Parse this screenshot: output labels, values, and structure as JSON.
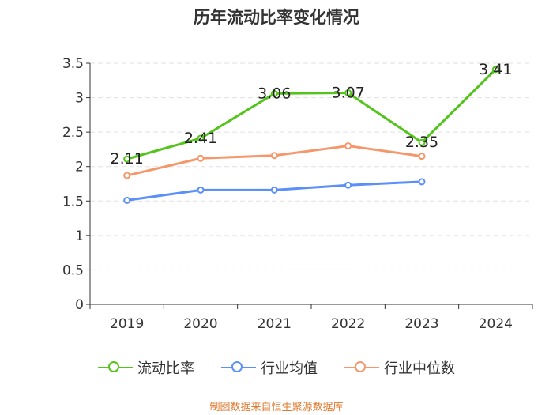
{
  "colors": {
    "current_ratio": "#52c41a",
    "industry_mean": "#5b8ff9",
    "industry_median": "#f6976b",
    "axis": "#333333",
    "grid": "#e0e0e0",
    "source": "#e07a30"
  },
  "chart_data": {
    "type": "line",
    "title": "历年流动比率变化情况",
    "categories": [
      "2019",
      "2020",
      "2021",
      "2022",
      "2023",
      "2024"
    ],
    "ylim": [
      0,
      3.5
    ],
    "yticks": [
      "0",
      "0.5",
      "1",
      "1.5",
      "2",
      "2.5",
      "3",
      "3.5"
    ],
    "grid": true,
    "legend_position": "bottom",
    "series": [
      {
        "name": "流动比率",
        "values": [
          2.11,
          2.41,
          3.06,
          3.07,
          2.35,
          3.41
        ],
        "data_labels": [
          "2.11",
          "2.41",
          "3.06",
          "3.07",
          "2.35",
          "3.41"
        ]
      },
      {
        "name": "行业均值",
        "values": [
          1.51,
          1.66,
          1.66,
          1.73,
          1.78,
          null
        ]
      },
      {
        "name": "行业中位数",
        "values": [
          1.87,
          2.12,
          2.16,
          2.3,
          2.15,
          null
        ]
      }
    ]
  },
  "source": "制图数据来自恒生聚源数据库"
}
